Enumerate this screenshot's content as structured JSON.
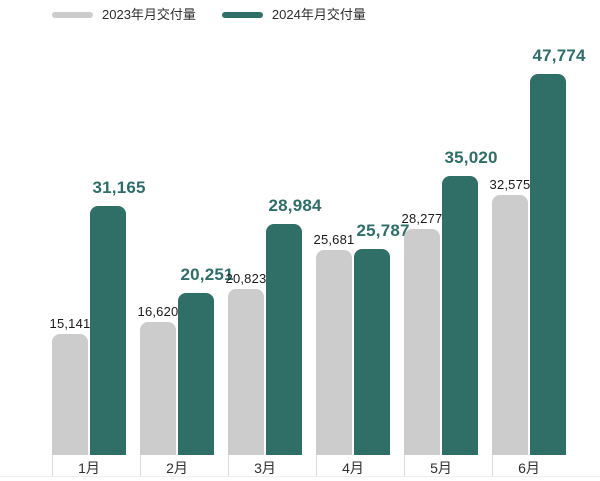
{
  "background": "#ffffff",
  "legend": {
    "items": [
      {
        "label": "2023年月交付量",
        "color": "#cccccc"
      },
      {
        "label": "2024年月交付量",
        "color": "#306e68"
      }
    ]
  },
  "chart_data": {
    "type": "bar",
    "title": "",
    "xlabel": "",
    "ylabel": "",
    "categories": [
      "1月",
      "2月",
      "3月",
      "4月",
      "5月",
      "6月"
    ],
    "series": [
      {
        "name": "2023年月交付量",
        "color": "#cccccc",
        "label_color": "#1a1a1a",
        "values": [
          15141,
          16620,
          20823,
          25681,
          28277,
          32575
        ],
        "labels": [
          "15,141",
          "16,620",
          "20,823",
          "25,681",
          "28,277",
          "32,575"
        ]
      },
      {
        "name": "2024年月交付量",
        "color": "#306e68",
        "label_color": "#2e6e69",
        "values": [
          31165,
          20251,
          28984,
          25787,
          35020,
          47774
        ],
        "labels": [
          "31,165",
          "20,251",
          "28,984",
          "25,787",
          "35,020",
          "47,774"
        ]
      }
    ],
    "ylim": [
      0,
      47774
    ],
    "grid": false,
    "axis_lines": false,
    "legend_position": "top-left",
    "value_labels": "above-bars"
  }
}
